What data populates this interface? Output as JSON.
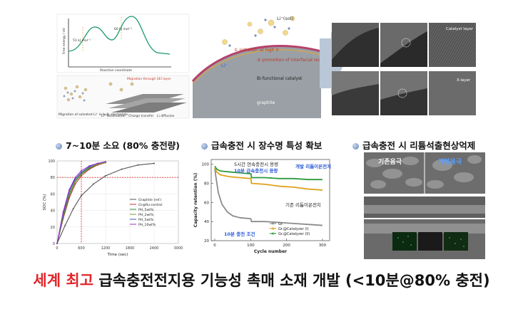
{
  "top_figure": {
    "energy_panel": {
      "ylabel": "Free energy / eV",
      "xlabel": "Reaction coordinate",
      "barrier1": "51 kJ mol⁻¹",
      "barrier2": "60 kJ mol⁻¹"
    },
    "migration_labels": {
      "sei": "Migration through SEI layer",
      "solvated": "Migration of solvated Li⁺ in bulk electrolyte",
      "desolvation": "Li⁺ desolvation",
      "charge_transfer": "Charge transfer",
      "diffusion": "Li diffusion"
    },
    "mechanism": {
      "li_sol": "Li⁺(sol)",
      "li": "Li⁺",
      "step1": "① initiation at high V",
      "step2": "② promotion of interfacial reactions",
      "catalyst": "Bi-functional catalyst",
      "graphite": "graphite"
    },
    "tem": {
      "catalyst_layer": "Catalyst layer",
      "x_layer": "X-layer"
    }
  },
  "sections": {
    "s1": "7~10분 소요 (80% 충전량)",
    "s2": "급속충전 시 장수명 특성 확보",
    "s3": "급속충전 시 리튬석출현상억제"
  },
  "chart_data": [
    {
      "type": "line",
      "xlabel": "Time (sec)",
      "ylabel": "SOC (%)",
      "xlim": [
        0,
        3000
      ],
      "ylim": [
        0,
        100
      ],
      "x_ticks": [
        "0",
        "600",
        "1200",
        "1800",
        "2400",
        "3000"
      ],
      "y_ticks": [
        "0",
        "20",
        "40",
        "60",
        "80",
        "100"
      ],
      "vline": 600,
      "hline": 80,
      "series": [
        {
          "name": "Graphite (ref.)",
          "color": "#555555",
          "x": [
            0,
            200,
            400,
            600,
            900,
            1200,
            1600,
            2000,
            2400
          ],
          "y": [
            0,
            22,
            42,
            58,
            72,
            82,
            90,
            95,
            97
          ]
        },
        {
          "name": "Gr@Ru-control",
          "color": "#c0392b",
          "x": [
            0,
            150,
            300,
            450,
            600,
            800,
            1000,
            1200
          ],
          "y": [
            0,
            30,
            55,
            72,
            82,
            90,
            95,
            98
          ]
        },
        {
          "name": "PH_5wt%",
          "color": "#2e8b3e",
          "x": [
            0,
            150,
            300,
            450,
            600,
            800,
            1000,
            1200
          ],
          "y": [
            0,
            32,
            58,
            75,
            84,
            91,
            96,
            98
          ]
        },
        {
          "name": "PH_2wt%",
          "color": "#7a9a2e",
          "x": [
            0,
            150,
            300,
            450,
            600,
            800,
            1000,
            1200
          ],
          "y": [
            0,
            34,
            60,
            76,
            85,
            92,
            96,
            98
          ]
        },
        {
          "name": "PH_5wt%",
          "color": "#3557c8",
          "x": [
            0,
            150,
            300,
            450,
            600,
            800,
            1000,
            1200
          ],
          "y": [
            0,
            36,
            63,
            78,
            86,
            93,
            97,
            99
          ]
        },
        {
          "name": "PH_10wt%",
          "color": "#9b2fc7",
          "x": [
            0,
            150,
            300,
            450,
            600,
            800,
            1000,
            1200
          ],
          "y": [
            0,
            38,
            65,
            80,
            88,
            94,
            97,
            99
          ]
        }
      ]
    },
    {
      "type": "line",
      "xlabel": "Cycle number",
      "ylabel": "Capacity retention (%)",
      "xlim": [
        -10,
        320
      ],
      "ylim": [
        20,
        105
      ],
      "x_ticks": [
        "0",
        "100",
        "200",
        "300"
      ],
      "y_ticks": [
        "20",
        "40",
        "60",
        "80",
        "100"
      ],
      "annotations": {
        "a1": "5시간 연속충전시 용량",
        "a2": "10분 급속충전시 용량",
        "a3": "개발 리튬이온전지",
        "a4": "기존 리튬이온전지",
        "a5": "10분 충전 조건"
      },
      "series": [
        {
          "name": "Gr.",
          "color": "#8c8c8c",
          "x": [
            0,
            5,
            10,
            20,
            35,
            50,
            70,
            100,
            101,
            102,
            140,
            180,
            220,
            260,
            300
          ],
          "y": [
            95,
            82,
            70,
            58,
            50,
            46,
            44,
            43,
            42,
            40,
            40,
            39,
            38,
            37,
            36
          ]
        },
        {
          "name": "Gr.@Catalyzer (I)",
          "color": "#e0a21a",
          "x": [
            0,
            5,
            15,
            40,
            70,
            100,
            101,
            102,
            140,
            180,
            220,
            260,
            300
          ],
          "y": [
            96,
            92,
            89,
            87,
            86,
            85,
            84,
            80,
            79,
            77,
            76,
            74,
            73
          ]
        },
        {
          "name": "Gr.@Catalyzer (II)",
          "color": "#2e9b3e",
          "x": [
            0,
            5,
            15,
            40,
            70,
            100,
            101,
            102,
            140,
            180,
            220,
            260,
            300
          ],
          "y": [
            98,
            95,
            93,
            92,
            91,
            90,
            90,
            86,
            86,
            85,
            85,
            84,
            84
          ]
        }
      ]
    }
  ],
  "sem": {
    "conventional": "기존음극",
    "developed": "개발음극"
  },
  "headline": {
    "red": "세계 최고",
    "rest": " 급속충전전지용 기능성 촉매 소재 개발 (<10분@80% 충전)"
  }
}
